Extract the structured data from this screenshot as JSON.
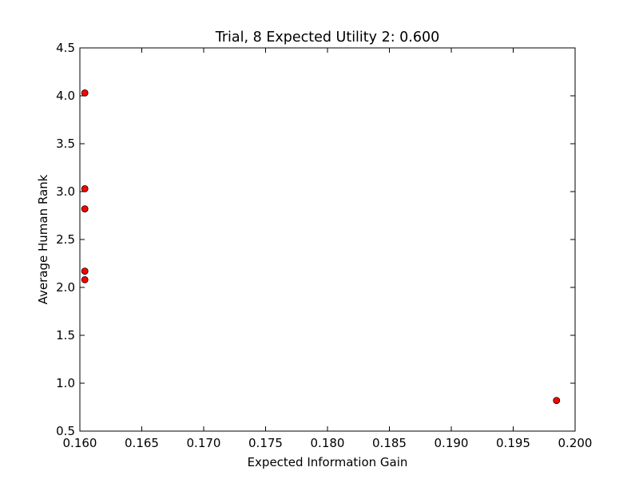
{
  "chart_data": {
    "type": "scatter",
    "title": "Trial, 8 Expected Utility 2: 0.600",
    "xlabel": "Expected Information Gain",
    "ylabel": "Average Human Rank",
    "xlim": [
      0.16,
      0.2
    ],
    "ylim": [
      0.5,
      4.5
    ],
    "xticks": [
      "0.160",
      "0.165",
      "0.170",
      "0.175",
      "0.180",
      "0.185",
      "0.190",
      "0.195",
      "0.200"
    ],
    "yticks": [
      "0.5",
      "1.0",
      "1.5",
      "2.0",
      "2.5",
      "3.0",
      "3.5",
      "4.0",
      "4.5"
    ],
    "grid": false,
    "marker_color": "#ff0000",
    "marker_edge_color": "#000000",
    "points": [
      {
        "x": 0.1604,
        "y": 4.03
      },
      {
        "x": 0.1604,
        "y": 3.03
      },
      {
        "x": 0.1604,
        "y": 2.82
      },
      {
        "x": 0.1604,
        "y": 2.17
      },
      {
        "x": 0.1604,
        "y": 2.08
      },
      {
        "x": 0.1985,
        "y": 0.82
      }
    ]
  }
}
